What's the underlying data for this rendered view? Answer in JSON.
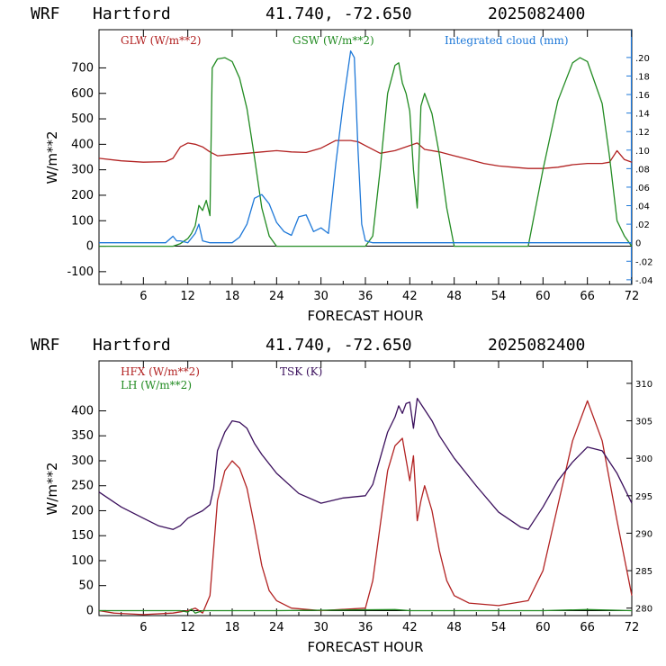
{
  "charts": [
    {
      "header": {
        "model": "WRF",
        "station": "Hartford",
        "coords": "41.740, -72.650",
        "run": "2025082400"
      },
      "ylabel": "W/m**2",
      "xlabel": "FORECAST HOUR",
      "legend": {
        "glw": "GLW (W/m**2)",
        "gsw": "GSW (W/m**2)",
        "cloud": "Integrated cloud (mm)"
      },
      "x_ticks": [
        "6",
        "12",
        "18",
        "24",
        "30",
        "36",
        "42",
        "48",
        "54",
        "60",
        "66",
        "72"
      ],
      "y_ticks": [
        "-100",
        "0",
        "100",
        "200",
        "300",
        "400",
        "500",
        "600",
        "700"
      ],
      "right_ticks": [
        ".20",
        ".18",
        ".16",
        ".14",
        ".12",
        ".10",
        ".08",
        ".06",
        ".04",
        ".02",
        "0",
        "-.02",
        "-.04"
      ]
    },
    {
      "header": {
        "model": "WRF",
        "station": "Hartford",
        "coords": "41.740, -72.650",
        "run": "2025082400"
      },
      "ylabel": "W/m**2",
      "xlabel": "FORECAST HOUR",
      "legend": {
        "hfx": "HFX (W/m**2)",
        "lh": "LH (W/m**2)",
        "tsk": "TSK (K)"
      },
      "x_ticks": [
        "6",
        "12",
        "18",
        "24",
        "30",
        "36",
        "42",
        "48",
        "54",
        "60",
        "66",
        "72"
      ],
      "y_ticks": [
        "0",
        "50",
        "100",
        "150",
        "200",
        "250",
        "300",
        "350",
        "400"
      ],
      "right_ticks": [
        "280",
        "285",
        "290",
        "295",
        "300",
        "305",
        "310"
      ]
    }
  ],
  "colors": {
    "red": "#b22222",
    "green": "#228b22",
    "blue": "#1e78d8",
    "purple": "#3a0f5c",
    "black": "#000000"
  },
  "chart_data": [
    {
      "type": "line",
      "xlabel": "FORECAST HOUR",
      "ylabel": "W/m**2",
      "xlim": [
        0,
        72
      ],
      "ylim": [
        -150,
        850
      ],
      "y2lim": [
        -0.045,
        0.23
      ],
      "series": [
        {
          "name": "GLW (W/m**2)",
          "color": "#b22222",
          "axis": "left",
          "x": [
            0,
            3,
            6,
            9,
            10,
            11,
            12,
            13,
            14,
            15,
            16,
            18,
            20,
            22,
            24,
            26,
            28,
            30,
            32,
            34,
            35,
            36,
            38,
            40,
            42,
            43,
            44,
            46,
            48,
            50,
            52,
            54,
            56,
            58,
            60,
            62,
            64,
            66,
            68,
            69,
            70,
            71,
            72
          ],
          "y": [
            345,
            335,
            330,
            332,
            345,
            390,
            405,
            400,
            390,
            370,
            355,
            360,
            365,
            370,
            375,
            370,
            368,
            385,
            415,
            415,
            410,
            395,
            365,
            375,
            395,
            405,
            380,
            370,
            355,
            340,
            325,
            315,
            310,
            305,
            305,
            310,
            320,
            325,
            325,
            330,
            375,
            340,
            330
          ]
        },
        {
          "name": "GSW (W/m**2)",
          "color": "#228b22",
          "axis": "left",
          "x": [
            0,
            10,
            11,
            12,
            12.5,
            13,
            13.5,
            14,
            14.5,
            15,
            15.3,
            16,
            17,
            18,
            19,
            20,
            21,
            22,
            23,
            24,
            36,
            37,
            38,
            39,
            40,
            40.5,
            41,
            41.5,
            42,
            42.5,
            43,
            43.5,
            44,
            45,
            46,
            47,
            48,
            57,
            58,
            60,
            62,
            64,
            65,
            66,
            68,
            69,
            70,
            71,
            72
          ],
          "y": [
            0,
            0,
            10,
            30,
            50,
            80,
            160,
            140,
            180,
            120,
            700,
            735,
            740,
            725,
            660,
            540,
            350,
            150,
            40,
            0,
            0,
            40,
            300,
            600,
            710,
            720,
            640,
            600,
            530,
            300,
            150,
            550,
            600,
            520,
            360,
            150,
            0,
            0,
            0,
            300,
            570,
            720,
            740,
            725,
            560,
            350,
            100,
            40,
            0
          ]
        },
        {
          "name": "Integrated cloud (mm)",
          "color": "#1e78d8",
          "axis": "right",
          "x": [
            0,
            9,
            10,
            10.5,
            11,
            12,
            13,
            13.5,
            14,
            15,
            16,
            18,
            19,
            20,
            21,
            22,
            23,
            24,
            25,
            26,
            27,
            28,
            29,
            30,
            31,
            32,
            33,
            34,
            34.5,
            35,
            35.5,
            36,
            37,
            72
          ],
          "y": [
            0,
            0,
            0.007,
            0.002,
            0.002,
            0,
            0.01,
            0.02,
            0.002,
            0,
            0,
            0,
            0.006,
            0.02,
            0.048,
            0.052,
            0.042,
            0.022,
            0.012,
            0.008,
            0.028,
            0.03,
            0.012,
            0.016,
            0.01,
            0.085,
            0.15,
            0.207,
            0.2,
            0.1,
            0.02,
            0.002,
            0,
            0
          ]
        }
      ]
    },
    {
      "type": "line",
      "xlabel": "FORECAST HOUR",
      "ylabel": "W/m**2",
      "xlim": [
        0,
        72
      ],
      "ylim": [
        -10,
        500
      ],
      "y2lim": [
        279,
        313
      ],
      "series": [
        {
          "name": "HFX (W/m**2)",
          "color": "#b22222",
          "axis": "left",
          "x": [
            0,
            2,
            6,
            10,
            12,
            13,
            14,
            15,
            16,
            17,
            18,
            19,
            20,
            21,
            22,
            23,
            24,
            26,
            30,
            36,
            37,
            38,
            39,
            40,
            41,
            42,
            42.5,
            43,
            43.5,
            44,
            45,
            46,
            47,
            48,
            50,
            54,
            58,
            60,
            62,
            64,
            66,
            68,
            70,
            72
          ],
          "y": [
            0,
            -5,
            -8,
            -5,
            0,
            5,
            -5,
            30,
            220,
            280,
            300,
            285,
            245,
            170,
            90,
            40,
            20,
            5,
            0,
            5,
            60,
            170,
            280,
            330,
            345,
            260,
            310,
            180,
            220,
            250,
            200,
            120,
            60,
            30,
            15,
            10,
            20,
            80,
            210,
            340,
            420,
            340,
            180,
            30
          ]
        },
        {
          "name": "LH (W/m**2)",
          "color": "#228b22",
          "axis": "left",
          "x": [
            0,
            11,
            12,
            12.5,
            13,
            14,
            15,
            18,
            24,
            40,
            42,
            46,
            60,
            66,
            72
          ],
          "y": [
            0,
            0,
            -3,
            3,
            -5,
            0,
            0,
            0,
            0,
            2,
            0,
            0,
            0,
            2,
            0
          ]
        },
        {
          "name": "TSK (K)",
          "color": "#3a0f5c",
          "axis": "right",
          "x": [
            0,
            3,
            6,
            8,
            10,
            11,
            12,
            13,
            14,
            15,
            15.5,
            16,
            17,
            18,
            19,
            20,
            21,
            22,
            24,
            27,
            30,
            33,
            36,
            37,
            38,
            39,
            40,
            40.5,
            41,
            41.5,
            42,
            42.5,
            43,
            44,
            45,
            46,
            48,
            51,
            54,
            57,
            58,
            60,
            62,
            64,
            66,
            68,
            70,
            72
          ],
          "y": [
            295.5,
            293.5,
            292,
            291,
            290.5,
            291,
            292,
            292.5,
            293,
            293.8,
            296,
            301,
            303.5,
            305,
            304.8,
            304,
            302,
            300.5,
            298,
            295.3,
            294,
            294.7,
            295,
            296.5,
            300,
            303.5,
            305.5,
            307,
            306,
            307.3,
            307.5,
            304,
            308,
            306.5,
            305,
            303,
            300,
            296.3,
            292.8,
            290.8,
            290.5,
            293.5,
            297,
            299.5,
            301.5,
            301,
            298,
            294
          ]
        }
      ]
    }
  ]
}
